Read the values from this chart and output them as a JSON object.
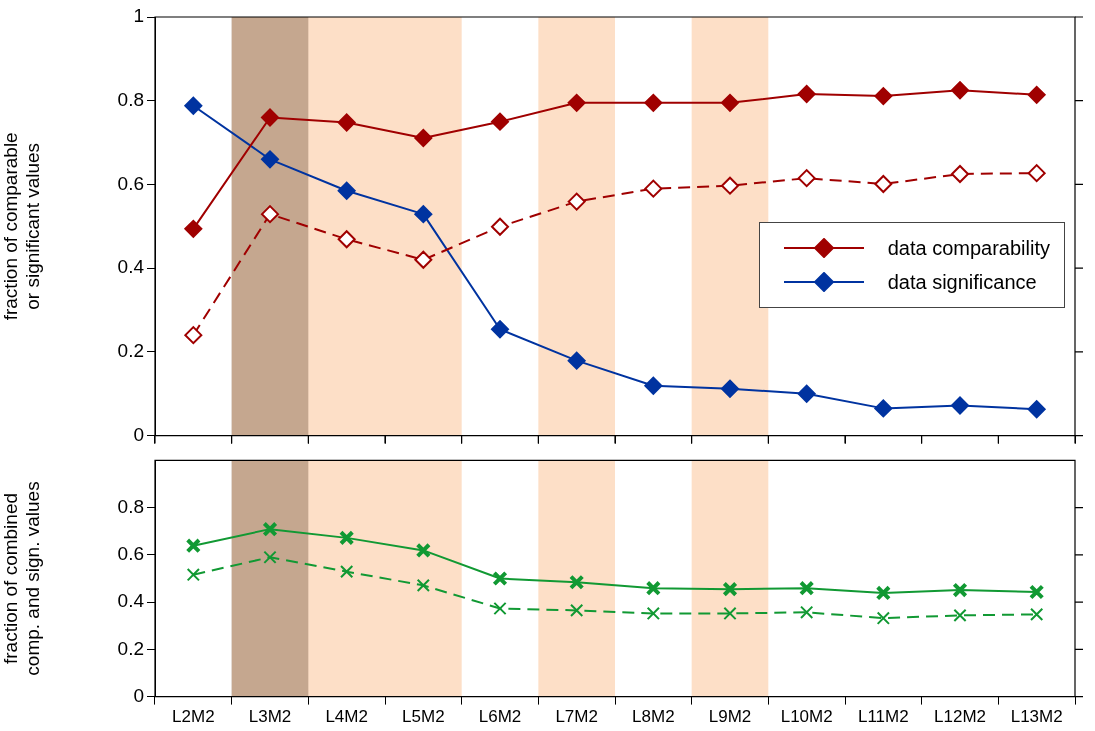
{
  "chart_data": [
    {
      "type": "line",
      "ylabel": "fraction of comparable or significant values",
      "categories": [
        "L2M2",
        "L3M2",
        "L4M2",
        "L5M2",
        "L6M2",
        "L7M2",
        "L8M2",
        "L9M2",
        "L10M2",
        "L11M2",
        "L12M2",
        "L13M2"
      ],
      "series": [
        {
          "name": "data comparability",
          "color": "#a00000",
          "marker": "diamond",
          "line_style": "solid",
          "values": [
            0.494,
            0.76,
            0.748,
            0.711,
            0.75,
            0.795,
            0.795,
            0.795,
            0.816,
            0.811,
            0.825,
            0.814
          ]
        },
        {
          "color": "#a00000",
          "marker": "diamond",
          "line_style": "dashed",
          "values": [
            0.24,
            0.529,
            0.469,
            0.42,
            0.499,
            0.559,
            0.59,
            0.597,
            0.615,
            0.601,
            0.625,
            0.627
          ]
        },
        {
          "name": "data significance",
          "color": "#0033a0",
          "marker": "diamond",
          "line_style": "solid",
          "values": [
            0.788,
            0.66,
            0.585,
            0.529,
            0.254,
            0.179,
            0.119,
            0.112,
            0.1,
            0.065,
            0.072,
            0.063
          ]
        }
      ],
      "ylim": [
        0,
        1
      ],
      "yticks": [
        0,
        0.2,
        0.4,
        0.6,
        0.8,
        1
      ],
      "tick_labels": "y",
      "grid": false,
      "legend": "right",
      "bands": [
        {
          "axis": "x",
          "from": "L3M2",
          "to": "L3M2",
          "color": "#a6a6a6"
        },
        {
          "axis": "x",
          "from": "L3M2",
          "to": "L5M2",
          "color": "#f79646"
        },
        {
          "axis": "x",
          "from": "L7M2",
          "to": "L7M2",
          "color": "#f79646"
        },
        {
          "axis": "x",
          "from": "L9M2",
          "to": "L9M2",
          "color": "#f79646"
        }
      ]
    },
    {
      "type": "line",
      "ylabel": "fraction of combined comp. and sign. values",
      "categories": [
        "L2M2",
        "L3M2",
        "L4M2",
        "L5M2",
        "L6M2",
        "L7M2",
        "L8M2",
        "L9M2",
        "L10M2",
        "L11M2",
        "L12M2",
        "L13M2"
      ],
      "series": [
        {
          "color": "#119933",
          "marker": "cross",
          "line_style": "solid",
          "values": [
            0.639,
            0.709,
            0.672,
            0.619,
            0.5,
            0.484,
            0.459,
            0.455,
            0.459,
            0.439,
            0.451,
            0.443
          ]
        },
        {
          "color": "#119933",
          "marker": "cross",
          "line_style": "dashed",
          "values": [
            0.516,
            0.59,
            0.529,
            0.471,
            0.373,
            0.365,
            0.352,
            0.352,
            0.357,
            0.332,
            0.344,
            0.348
          ]
        }
      ],
      "ylim": [
        0,
        1
      ],
      "yticks": [
        0,
        0.2,
        0.4,
        0.6,
        0.8
      ],
      "grid": false,
      "legend": false,
      "bands": [
        {
          "axis": "x",
          "from": "L3M2",
          "to": "L3M2",
          "color": "#a6a6a6"
        },
        {
          "axis": "x",
          "from": "L3M2",
          "to": "L5M2",
          "color": "#f79646"
        },
        {
          "axis": "x",
          "from": "L7M2",
          "to": "L7M2",
          "color": "#f79646"
        },
        {
          "axis": "x",
          "from": "L9M2",
          "to": "L9M2",
          "color": "#f79646"
        }
      ]
    }
  ]
}
